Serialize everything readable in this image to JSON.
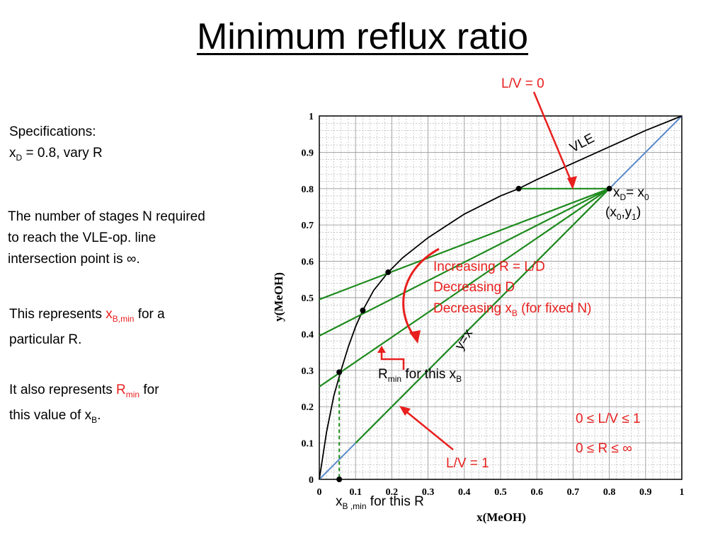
{
  "slide": {
    "title": "Minimum reflux ratio",
    "spec_line1": "Specifications:",
    "spec_line2_prefix": "x",
    "spec_line2_sub": "D",
    "spec_line2_rest": " = 0.8, vary R",
    "para1_line1": "The number of stages N required",
    "para1_line2": "to reach the VLE-op. line",
    "para1_line3": "intersection point is ∞.",
    "para2_pre": "This represents ",
    "para2_x": "x",
    "para2_sub": "B,min",
    "para2_post": " for a",
    "para2_line2": "particular R.",
    "para3_pre": "It also represents ",
    "para3_R": "R",
    "para3_sub": "min",
    "para3_post": " for",
    "para3_line2_pre": "this value of x",
    "para3_line2_sub": "B",
    "para3_line2_post": "."
  },
  "annotations": {
    "lv0": "L/V = 0",
    "lv1": "L/V = 1",
    "vle": "VLE",
    "yx": "y=x",
    "xd_x": "x",
    "xd_sub": "D",
    "xd_eq": "= x",
    "xd_sub0": "0",
    "pt_open": "(x",
    "pt_sub0": "0",
    "pt_comma": ",y",
    "pt_sub1": "1",
    "pt_close": ")",
    "inc1": "Increasing R = L/D",
    "inc2": "Decreasing D",
    "inc3_pre": "Decreasing x",
    "inc3_sub": "B",
    "inc3_post": " (for fixed N)",
    "rmin_R": "R",
    "rmin_sub": "min",
    "rmin_post": " for this x",
    "rmin_sub2": "B",
    "range1": "0 ≤ L/V ≤  1",
    "range2": "0 ≤ R ≤  ∞",
    "xbmin_x": "x",
    "xbmin_sub": "B ,min",
    "xbmin_post": " for this R"
  },
  "chart_data": {
    "type": "line",
    "xlabel": "x(MeOH)",
    "ylabel": "y(MeOH)",
    "xlim": [
      0,
      1
    ],
    "ylim": [
      0,
      1
    ],
    "xticks": [
      "0",
      "0.1",
      "0.2",
      "0.3",
      "0.4",
      "0.5",
      "0.6",
      "0.7",
      "0.8",
      "0.9",
      "1"
    ],
    "yticks": [
      "0",
      "0.1",
      "0.2",
      "0.3",
      "0.4",
      "0.5",
      "0.6",
      "0.7",
      "0.8",
      "0.9",
      "1"
    ],
    "grid": true,
    "vle_curve": [
      [
        0,
        0
      ],
      [
        0.02,
        0.13
      ],
      [
        0.04,
        0.23
      ],
      [
        0.06,
        0.3
      ],
      [
        0.08,
        0.365
      ],
      [
        0.1,
        0.42
      ],
      [
        0.12,
        0.465
      ],
      [
        0.15,
        0.52
      ],
      [
        0.19,
        0.57
      ],
      [
        0.23,
        0.61
      ],
      [
        0.3,
        0.665
      ],
      [
        0.4,
        0.73
      ],
      [
        0.5,
        0.78
      ],
      [
        0.55,
        0.8
      ],
      [
        0.6,
        0.825
      ],
      [
        0.7,
        0.87
      ],
      [
        0.8,
        0.915
      ],
      [
        0.9,
        0.96
      ],
      [
        1,
        1
      ]
    ],
    "diagonal": [
      [
        0,
        0
      ],
      [
        1,
        1
      ]
    ],
    "operating_lines": [
      {
        "x0": 0,
        "y0": 0.495
      },
      {
        "x0": 0,
        "y0": 0.395
      },
      {
        "x0": 0,
        "y0": 0.255
      },
      {
        "x0": 0.1,
        "y0": 0.1
      }
    ],
    "horizontal_line": [
      [
        0.55,
        0.8
      ],
      [
        0.8,
        0.8
      ]
    ],
    "points": [
      [
        0.8,
        0.8
      ],
      [
        0.55,
        0.8
      ],
      [
        0.19,
        0.57
      ],
      [
        0.12,
        0.465
      ],
      [
        0.055,
        0.295
      ],
      [
        0.055,
        0
      ]
    ],
    "xbmin_drop": [
      [
        0.055,
        0.295
      ],
      [
        0.055,
        0
      ]
    ],
    "colors": {
      "vle": "#000000",
      "diagonal": "#5b8bc9",
      "operating": "#1e8a1e",
      "annotation": "#e8201e",
      "grid": "#9a9a9a"
    }
  }
}
